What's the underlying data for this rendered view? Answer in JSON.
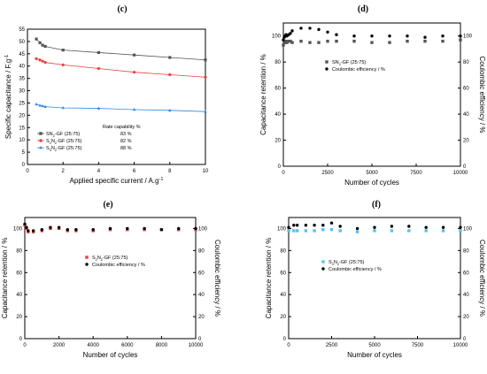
{
  "chart_data": [
    {
      "panel": "(c)",
      "type": "line",
      "xlabel": "Applied specific current / A.g",
      "xlabel_sup": "-1",
      "ylabel": "Specific capacitance / F.g",
      "ylabel_sup": "-1",
      "xlim": [
        0,
        10
      ],
      "ylim": [
        0,
        55
      ],
      "xticks": [
        "0",
        "2",
        "4",
        "6",
        "8",
        "10"
      ],
      "yticks": [
        "0",
        "5",
        "10",
        "15",
        "20",
        "25",
        "30",
        "35",
        "40",
        "45",
        "50",
        "55"
      ],
      "legend_title": "Rate capability %",
      "legend_position": "bottom-left",
      "series": [
        {
          "name": "SN",
          "name_sub": "2",
          "name_suffix": "-GF (25:75)",
          "rate": "83 %",
          "color": "#555555",
          "marker": "square",
          "x": [
            0.5,
            0.7,
            0.85,
            1,
            2,
            4,
            6,
            8,
            10
          ],
          "y": [
            51,
            49.5,
            48.5,
            48,
            46.5,
            45.5,
            44.5,
            43.5,
            42.5
          ]
        },
        {
          "name": "S",
          "name_sub": "2",
          "name_mid": "N",
          "name_sub2": "2",
          "name_suffix": "-GF (25:75)",
          "rate": "82 %",
          "color": "#e8403c",
          "marker": "circle",
          "x": [
            0.5,
            0.7,
            0.85,
            1,
            2,
            4,
            6,
            8,
            10
          ],
          "y": [
            43,
            42.5,
            42,
            41.5,
            40.5,
            39,
            37.5,
            36.5,
            35.5
          ]
        },
        {
          "name": "S",
          "name_sub": "3",
          "name_mid": "N",
          "name_sub2": "2",
          "name_suffix": "-GF (25:75)",
          "rate": "88 %",
          "color": "#2d8ae0",
          "marker": "triangle",
          "x": [
            0.5,
            0.7,
            0.85,
            1,
            2,
            4,
            6,
            8,
            10
          ],
          "y": [
            24.5,
            24,
            23.8,
            23.5,
            23,
            22.8,
            22.3,
            22,
            21.5
          ]
        }
      ]
    },
    {
      "panel": "(d)",
      "type": "scatter",
      "xlabel": "Number of cycles",
      "ylabel": "Capacitance retention / %",
      "ylabel_right": "Coulombic efficiency / %",
      "xlim": [
        0,
        10000
      ],
      "ylim": [
        0,
        110
      ],
      "xticks": [
        "0",
        "2500",
        "5000",
        "7500",
        "10000"
      ],
      "yticks": [
        "0",
        "20",
        "40",
        "60",
        "80",
        "100"
      ],
      "yticks_right": [
        "0",
        "20",
        "40",
        "60",
        "80",
        "100"
      ],
      "legend_position": "top-center",
      "series": [
        {
          "name": "SN",
          "name_sub": "2",
          "name_suffix": "-GF (25:75)",
          "color": "#555555",
          "marker": "square",
          "x": [
            0,
            50,
            100,
            150,
            200,
            300,
            400,
            500,
            1000,
            1500,
            2000,
            2500,
            3000,
            4000,
            5000,
            6000,
            7000,
            8000,
            9000,
            10000
          ],
          "y": [
            93,
            95,
            95,
            96,
            95,
            96,
            96,
            95,
            96,
            95,
            95,
            96,
            96,
            96,
            95,
            95,
            96,
            96,
            96,
            97
          ]
        },
        {
          "name": "Coulombic efficiency / %",
          "color": "#000000",
          "marker": "circle",
          "x": [
            0,
            50,
            100,
            150,
            200,
            300,
            400,
            500,
            1000,
            1500,
            2000,
            2500,
            3000,
            4000,
            5000,
            6000,
            7000,
            8000,
            9000,
            10000
          ],
          "y": [
            97,
            99,
            100,
            101,
            100,
            101,
            102,
            104,
            106,
            106,
            105,
            103,
            101,
            100,
            100,
            100,
            100,
            99,
            100,
            100
          ]
        }
      ]
    },
    {
      "panel": "(e)",
      "type": "scatter",
      "xlabel": "Number of cycles",
      "ylabel": "Capacitance retention / %",
      "ylabel_right": "Coulombic efficiency / %",
      "xlim": [
        0,
        10000
      ],
      "ylim": [
        0,
        110
      ],
      "xticks": [
        "0",
        "2000",
        "4000",
        "6000",
        "8000",
        "10000"
      ],
      "yticks": [
        "0",
        "20",
        "40",
        "60",
        "80",
        "100"
      ],
      "yticks_right": [
        "0",
        "20",
        "40",
        "60",
        "80",
        "100"
      ],
      "legend_position": "center",
      "series": [
        {
          "name": "S",
          "name_sub": "2",
          "name_mid": "N",
          "name_sub2": "2",
          "name_suffix": "-GF (25:75)",
          "color": "#e8403c",
          "marker": "square",
          "x": [
            0,
            100,
            200,
            500,
            1000,
            1500,
            2000,
            2500,
            3000,
            4000,
            5000,
            6000,
            7000,
            8000,
            9000,
            10000
          ],
          "y": [
            103,
            100,
            97,
            97,
            98,
            100,
            100,
            98,
            98,
            98,
            99,
            99,
            99,
            99,
            99,
            99
          ]
        },
        {
          "name": "Coulombic efficiency / %",
          "color": "#000000",
          "marker": "circle",
          "x": [
            0,
            100,
            200,
            500,
            1000,
            1500,
            2000,
            2500,
            3000,
            4000,
            5000,
            6000,
            7000,
            8000,
            9000,
            10000
          ],
          "y": [
            104,
            101,
            98,
            98,
            99,
            101,
            101,
            99,
            99,
            99,
            100,
            100,
            100,
            99,
            100,
            100
          ]
        }
      ]
    },
    {
      "panel": "(f)",
      "type": "scatter",
      "xlabel": "Number of cycles",
      "ylabel": "Capacitance retention / %",
      "ylabel_right": "Coulombic efficiency / %",
      "xlim": [
        0,
        10000
      ],
      "ylim": [
        0,
        110
      ],
      "xticks": [
        "0",
        "2500",
        "5000",
        "7500",
        "10000"
      ],
      "yticks": [
        "0",
        "20",
        "40",
        "60",
        "80",
        "100"
      ],
      "yticks_right": [
        "0",
        "20",
        "40",
        "60",
        "80",
        "100"
      ],
      "legend_position": "center",
      "series": [
        {
          "name": "S",
          "name_sub": "3",
          "name_mid": "N",
          "name_sub2": "2",
          "name_suffix": "-GF (25:75)",
          "color": "#4fc3f7",
          "marker": "square",
          "x": [
            0,
            300,
            500,
            1000,
            1500,
            2000,
            2500,
            3000,
            4000,
            5000,
            6000,
            7000,
            8000,
            9000,
            10000
          ],
          "y": [
            98,
            98,
            98,
            98,
            98,
            99,
            99,
            98,
            97,
            98,
            98,
            98,
            98,
            98,
            98
          ]
        },
        {
          "name": "Coulombic efficiency / %",
          "color": "#000000",
          "marker": "circle",
          "x": [
            0,
            300,
            500,
            1000,
            1500,
            2000,
            2500,
            3000,
            4000,
            5000,
            6000,
            7000,
            8000,
            9000,
            10000
          ],
          "y": [
            101,
            103,
            103,
            103,
            103,
            103,
            105,
            102,
            100,
            101,
            102,
            102,
            101,
            101,
            101
          ]
        }
      ]
    }
  ]
}
